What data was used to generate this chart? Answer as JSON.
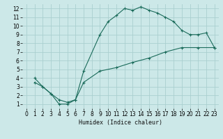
{
  "xlabel": "Humidex (Indice chaleur)",
  "bg_color": "#cce8e8",
  "grid_color": "#aacfcf",
  "line_color": "#1a6b5a",
  "xlim": [
    -0.5,
    23.5
  ],
  "ylim": [
    0.5,
    12.5
  ],
  "xticks": [
    0,
    1,
    2,
    3,
    4,
    5,
    6,
    7,
    8,
    9,
    10,
    11,
    12,
    13,
    14,
    15,
    16,
    17,
    18,
    19,
    20,
    21,
    22,
    23
  ],
  "yticks": [
    1,
    2,
    3,
    4,
    5,
    6,
    7,
    8,
    9,
    10,
    11,
    12
  ],
  "curve1_x": [
    1,
    2,
    3,
    4,
    5,
    6,
    7,
    9,
    10,
    11,
    12,
    13,
    14,
    15,
    16,
    17,
    18,
    19,
    20,
    21,
    22,
    23
  ],
  "curve1_y": [
    4,
    3,
    2.2,
    1.0,
    1.0,
    1.5,
    4.8,
    9.0,
    10.5,
    11.2,
    12.0,
    11.8,
    12.2,
    11.8,
    11.5,
    11.0,
    10.5,
    9.5,
    9.0,
    9.0,
    9.2,
    7.5
  ],
  "curve2_x": [
    1,
    2,
    3,
    4,
    5,
    6,
    7,
    9,
    11,
    13,
    15,
    17,
    19,
    21,
    23
  ],
  "curve2_y": [
    3.5,
    3.0,
    2.2,
    1.5,
    1.2,
    1.5,
    3.5,
    4.8,
    5.2,
    5.8,
    6.3,
    7.0,
    7.5,
    7.5,
    7.5
  ],
  "xlabel_fontsize": 6.0,
  "tick_fontsize": 5.5
}
